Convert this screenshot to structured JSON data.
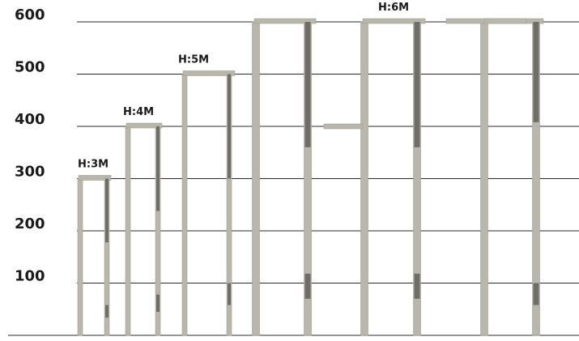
{
  "diagram": {
    "y_axis": {
      "min": 0,
      "max": 600,
      "ticks": [
        {
          "value": 100,
          "label": "100"
        },
        {
          "value": 200,
          "label": "200"
        },
        {
          "value": 300,
          "label": "300"
        },
        {
          "value": 400,
          "label": "400"
        },
        {
          "value": 500,
          "label": "500"
        },
        {
          "value": 600,
          "label": "600"
        }
      ]
    },
    "height_labels": [
      {
        "text": "H:3M",
        "value": 300,
        "group": 0
      },
      {
        "text": "H:4M",
        "value": 400,
        "group": 1
      },
      {
        "text": "H:5M",
        "value": 500,
        "group": 2
      },
      {
        "text": "H:6M",
        "value": 600,
        "group": 4
      }
    ],
    "poles": [
      {
        "name": "pole-3m-single",
        "height": 300,
        "bands": [
          [
            178,
            300
          ],
          [
            34,
            58
          ]
        ],
        "arms": [
          "left"
        ]
      },
      {
        "name": "pole-4m-single",
        "height": 400,
        "bands": [
          [
            238,
            400
          ],
          [
            45,
            78
          ]
        ],
        "arms": [
          "left"
        ]
      },
      {
        "name": "pole-5m-single",
        "height": 500,
        "bands": [
          [
            300,
            500
          ],
          [
            58,
            100
          ]
        ],
        "arms": [
          "left"
        ]
      },
      {
        "name": "pole-6m-single",
        "height": 600,
        "bands": [
          [
            360,
            600
          ],
          [
            70,
            118
          ]
        ],
        "arms": [
          "left"
        ]
      },
      {
        "name": "pole-6m-double-arm",
        "height": 600,
        "bands": [
          [
            360,
            600
          ],
          [
            70,
            118
          ]
        ],
        "arms": [
          "left",
          "left-low"
        ]
      },
      {
        "name": "pole-6m-twin",
        "height": 600,
        "bands": [
          [
            408,
            600
          ],
          [
            58,
            100
          ]
        ],
        "arms": [
          "left",
          "right"
        ]
      }
    ],
    "colors": {
      "pole": "#b9b6ac",
      "pole_edge": "#a29f95",
      "band": "#6f6d67",
      "gridline": "#2b2b2b"
    }
  }
}
